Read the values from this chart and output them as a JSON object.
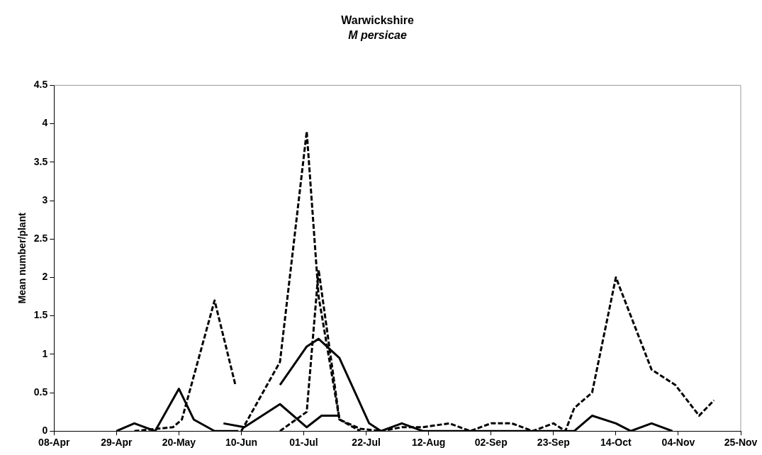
{
  "chart_data": {
    "type": "line",
    "title": "Warwickshire",
    "subtitle": "M persicae",
    "ylabel": "Mean number/plant",
    "xlim": [
      "--04-08",
      "--11-25"
    ],
    "xticks": [
      {
        "value": "--04-08",
        "label": "08-Apr"
      },
      {
        "value": "--04-29",
        "label": "29-Apr"
      },
      {
        "value": "--05-20",
        "label": "20-May"
      },
      {
        "value": "--06-10",
        "label": "10-Jun"
      },
      {
        "value": "--07-01",
        "label": "01-Jul"
      },
      {
        "value": "--07-22",
        "label": "22-Jul"
      },
      {
        "value": "--08-12",
        "label": "12-Aug"
      },
      {
        "value": "--09-02",
        "label": "02-Sep"
      },
      {
        "value": "--09-23",
        "label": "23-Sep"
      },
      {
        "value": "--10-14",
        "label": "14-Oct"
      },
      {
        "value": "--11-04",
        "label": "04-Nov"
      },
      {
        "value": "--11-25",
        "label": "25-Nov"
      }
    ],
    "ylim": [
      0,
      4.5
    ],
    "yticks": [
      0,
      0.5,
      1,
      1.5,
      2,
      2.5,
      3,
      3.5,
      4,
      4.5
    ],
    "grid": false,
    "legend": false,
    "marker": "none",
    "series": [
      {
        "color": "#000000",
        "line_style": "solid",
        "x": [
          "--04-29",
          "--05-05",
          "--05-12",
          "--05-20",
          "--05-25",
          "--06-01",
          "--06-09"
        ],
        "values": [
          0,
          0.1,
          0,
          0.55,
          0.15,
          0,
          0
        ]
      },
      {
        "color": "#000000",
        "line_style": "solid",
        "x": [
          "--06-04",
          "--06-11",
          "--06-23",
          "--07-02",
          "--07-07",
          "--07-13"
        ],
        "values": [
          0.1,
          0.05,
          0.35,
          0.05,
          0.2,
          0.2
        ]
      },
      {
        "color": "#000000",
        "line_style": "solid",
        "x": [
          "--06-23",
          "--07-02",
          "--07-06",
          "--07-13",
          "--07-23",
          "--07-27",
          "--08-03",
          "--08-10",
          "--08-19",
          "--09-02",
          "--09-16",
          "--09-30",
          "--10-06",
          "--10-14",
          "--10-19",
          "--10-26",
          "--11-02"
        ],
        "values": [
          0.6,
          1.1,
          1.2,
          0.95,
          0.1,
          0,
          0.1,
          0,
          0,
          0,
          0,
          0,
          0.2,
          0.1,
          0,
          0.1,
          0
        ]
      },
      {
        "color": "#000000",
        "line_style": "dashed",
        "x": [
          "--05-05",
          "--05-18",
          "--05-21",
          "--06-01",
          "--06-08"
        ],
        "values": [
          0,
          0.05,
          0.15,
          1.7,
          0.6
        ]
      },
      {
        "color": "#000000",
        "line_style": "dashed",
        "x": [
          "--06-10",
          "--06-23",
          "--07-02",
          "--07-06",
          "--07-13",
          "--07-20",
          "--07-27",
          "--08-03",
          "--08-10",
          "--08-19",
          "--08-26",
          "--09-02",
          "--09-09",
          "--09-16",
          "--09-23",
          "--09-27",
          "--09-30",
          "--10-06",
          "--10-14",
          "--10-19",
          "--10-26",
          "--11-03",
          "--11-11",
          "--11-16"
        ],
        "values": [
          0,
          0.9,
          3.9,
          1.75,
          0.15,
          0.03,
          0,
          0.05,
          0.05,
          0.1,
          0,
          0.1,
          0.1,
          0,
          0.1,
          0,
          0.3,
          0.5,
          2,
          1.5,
          0.8,
          0.6,
          0.2,
          0.4
        ]
      },
      {
        "color": "#000000",
        "line_style": "dashed",
        "x": [
          "--06-23",
          "--07-02",
          "--07-06",
          "--07-13",
          "--07-20"
        ],
        "values": [
          0,
          0.25,
          2.1,
          0.15,
          0
        ]
      }
    ]
  }
}
